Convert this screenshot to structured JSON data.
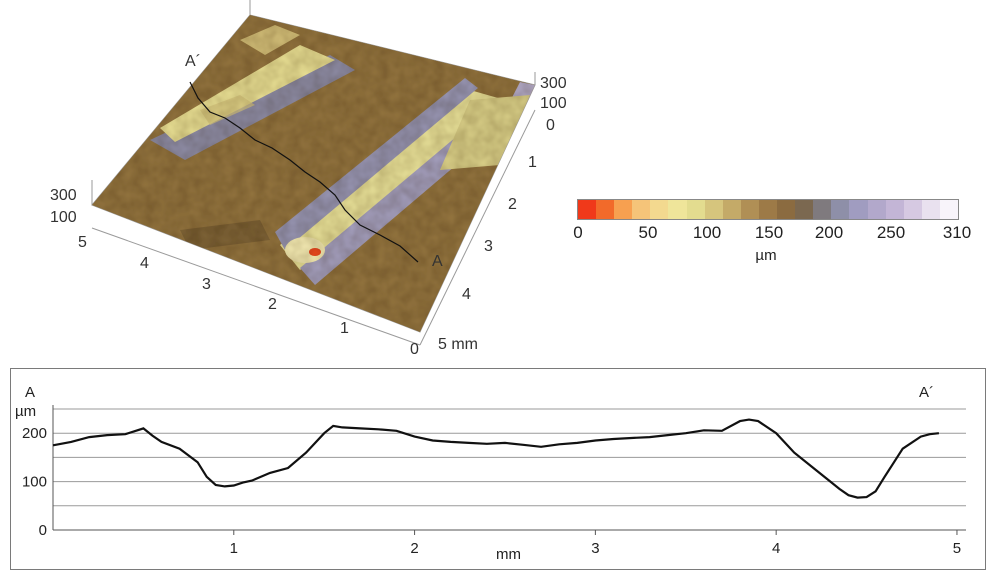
{
  "surface_plot": {
    "z_ticks_right": [
      "300",
      "100",
      "0"
    ],
    "z_ticks_left": [
      "300",
      "100"
    ],
    "y_ticks": [
      "1",
      "2",
      "3",
      "4",
      "5 mm"
    ],
    "x_ticks": [
      "5",
      "4",
      "3",
      "2",
      "1",
      "0"
    ],
    "profile_start_label": "A",
    "profile_end_label": "A´"
  },
  "colorbar": {
    "unit": "µm",
    "ticks": [
      "0",
      "50",
      "100",
      "150",
      "200",
      "250",
      "310"
    ],
    "colors": [
      "#f0391a",
      "#f26a2a",
      "#f7a050",
      "#f5c479",
      "#f3d98f",
      "#efe59a",
      "#e3dc8f",
      "#d6c57d",
      "#c4aa68",
      "#b08f55",
      "#9d7a47",
      "#8b6b40",
      "#7b6850",
      "#7f7a7e",
      "#8e8fa8",
      "#a09cc0",
      "#b2a8cb",
      "#c3b5d6",
      "#d6c9e2",
      "#e9e1ef",
      "#f8f4fa"
    ]
  },
  "chart_data": {
    "type": "line",
    "corner_left_label": "A",
    "corner_right_label": "A´",
    "xlabel": "mm",
    "ylabel": "µm",
    "xlim": [
      0,
      5.05
    ],
    "ylim": [
      0,
      250
    ],
    "xticks": [
      "1",
      "2",
      "3",
      "4",
      "5"
    ],
    "yticks": [
      "0",
      "100",
      "200"
    ],
    "series": [
      {
        "x": [
          0.0,
          0.1,
          0.2,
          0.3,
          0.4,
          0.5,
          0.55,
          0.6,
          0.7,
          0.8,
          0.85,
          0.9,
          0.95,
          1.0,
          1.05,
          1.1,
          1.2,
          1.3,
          1.4,
          1.5,
          1.55,
          1.6,
          1.7,
          1.8,
          1.9,
          2.0,
          2.1,
          2.2,
          2.3,
          2.4,
          2.5,
          2.6,
          2.7,
          2.8,
          2.9,
          3.0,
          3.1,
          3.2,
          3.3,
          3.4,
          3.5,
          3.6,
          3.7,
          3.8,
          3.85,
          3.9,
          4.0,
          4.1,
          4.2,
          4.3,
          4.35,
          4.4,
          4.45,
          4.5,
          4.55,
          4.6,
          4.7,
          4.8,
          4.85,
          4.9
        ],
        "y": [
          175,
          182,
          192,
          196,
          198,
          210,
          195,
          182,
          168,
          140,
          110,
          93,
          90,
          92,
          98,
          102,
          118,
          128,
          160,
          200,
          215,
          212,
          210,
          208,
          205,
          193,
          185,
          182,
          180,
          178,
          180,
          176,
          172,
          177,
          180,
          185,
          188,
          190,
          192,
          196,
          200,
          206,
          205,
          225,
          228,
          225,
          200,
          160,
          130,
          100,
          85,
          72,
          67,
          68,
          80,
          110,
          168,
          193,
          198,
          200
        ]
      }
    ]
  }
}
